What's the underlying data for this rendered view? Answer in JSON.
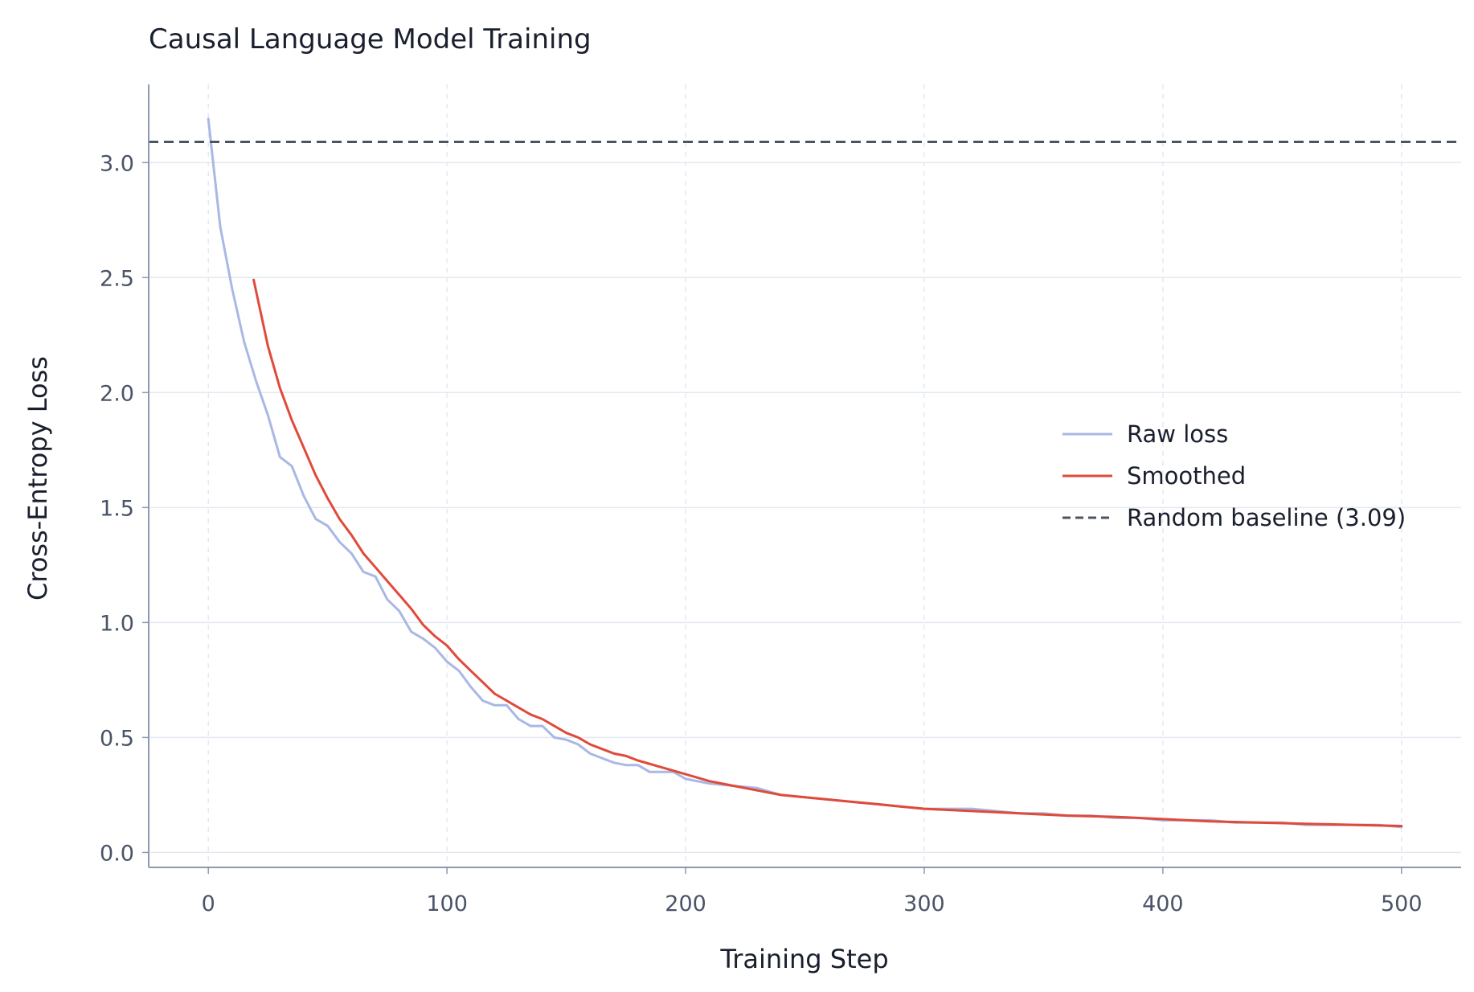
{
  "chart_data": {
    "type": "line",
    "title": "Causal Language Model Training",
    "xlabel": "Training Step",
    "ylabel": "Cross-Entropy Loss",
    "xlim": [
      -25,
      525
    ],
    "ylim": [
      -0.065,
      3.34
    ],
    "x_ticks": [
      0,
      100,
      200,
      300,
      400,
      500
    ],
    "x_tick_labels": [
      "0",
      "100",
      "200",
      "300",
      "400",
      "500"
    ],
    "y_ticks": [
      0.0,
      0.5,
      1.0,
      1.5,
      2.0,
      2.5,
      3.0
    ],
    "y_tick_labels": [
      "0.0",
      "0.5",
      "1.0",
      "1.5",
      "2.0",
      "2.5",
      "3.0"
    ],
    "grid": true,
    "legend_position": "center-right",
    "series": [
      {
        "name": "Raw loss",
        "color": "#a9b8e4",
        "style": "solid",
        "x": [
          0,
          5,
          10,
          15,
          20,
          25,
          30,
          35,
          40,
          45,
          50,
          55,
          60,
          65,
          70,
          75,
          80,
          85,
          90,
          95,
          100,
          105,
          110,
          115,
          120,
          125,
          130,
          135,
          140,
          145,
          150,
          155,
          160,
          165,
          170,
          175,
          180,
          185,
          190,
          195,
          200,
          210,
          220,
          230,
          240,
          250,
          260,
          270,
          280,
          290,
          300,
          310,
          320,
          330,
          340,
          350,
          360,
          370,
          380,
          390,
          400,
          410,
          420,
          430,
          440,
          450,
          460,
          470,
          480,
          490,
          500
        ],
        "y": [
          3.19,
          2.72,
          2.45,
          2.22,
          2.05,
          1.9,
          1.72,
          1.68,
          1.55,
          1.45,
          1.42,
          1.35,
          1.3,
          1.22,
          1.2,
          1.1,
          1.05,
          0.96,
          0.93,
          0.89,
          0.83,
          0.79,
          0.72,
          0.66,
          0.64,
          0.64,
          0.58,
          0.55,
          0.55,
          0.5,
          0.49,
          0.47,
          0.43,
          0.41,
          0.39,
          0.38,
          0.38,
          0.35,
          0.35,
          0.35,
          0.32,
          0.3,
          0.29,
          0.28,
          0.25,
          0.24,
          0.23,
          0.22,
          0.21,
          0.2,
          0.19,
          0.19,
          0.19,
          0.18,
          0.17,
          0.17,
          0.16,
          0.16,
          0.15,
          0.15,
          0.14,
          0.14,
          0.14,
          0.13,
          0.13,
          0.13,
          0.12,
          0.12,
          0.12,
          0.12,
          0.11
        ]
      },
      {
        "name": "Smoothed",
        "color": "#e04a3a",
        "style": "solid",
        "x": [
          19,
          25,
          30,
          35,
          40,
          45,
          50,
          55,
          60,
          65,
          70,
          75,
          80,
          85,
          90,
          95,
          100,
          105,
          110,
          115,
          120,
          125,
          130,
          135,
          140,
          145,
          150,
          155,
          160,
          165,
          170,
          175,
          180,
          190,
          200,
          210,
          220,
          230,
          240,
          250,
          260,
          270,
          280,
          290,
          300,
          320,
          340,
          360,
          380,
          400,
          420,
          440,
          460,
          480,
          500
        ],
        "y": [
          2.49,
          2.2,
          2.02,
          1.88,
          1.76,
          1.64,
          1.54,
          1.45,
          1.38,
          1.3,
          1.24,
          1.18,
          1.12,
          1.06,
          0.99,
          0.94,
          0.9,
          0.84,
          0.79,
          0.74,
          0.69,
          0.66,
          0.63,
          0.6,
          0.58,
          0.55,
          0.52,
          0.5,
          0.47,
          0.45,
          0.43,
          0.42,
          0.4,
          0.37,
          0.34,
          0.31,
          0.29,
          0.27,
          0.25,
          0.24,
          0.23,
          0.22,
          0.21,
          0.2,
          0.19,
          0.18,
          0.17,
          0.16,
          0.155,
          0.145,
          0.135,
          0.13,
          0.125,
          0.12,
          0.115
        ]
      }
    ],
    "baseline": {
      "name": "Random baseline (3.09)",
      "value": 3.09,
      "color": "#4a5463",
      "style": "dashed"
    },
    "legend": [
      "Raw loss",
      "Smoothed",
      "Random baseline (3.09)"
    ]
  }
}
